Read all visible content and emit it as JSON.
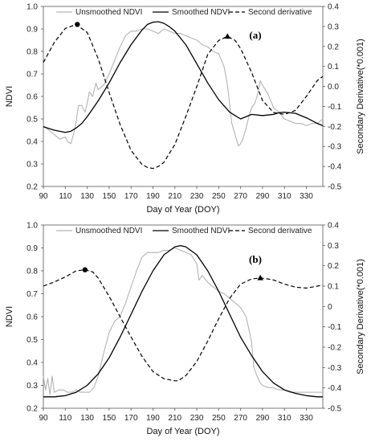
{
  "chart_data": [
    {
      "type": "line",
      "panel_label": "(a)",
      "xlabel": "Day of Year (DOY)",
      "ylabel": "NDVI",
      "y2label": "Secondary Derivative(*0.001)",
      "xlim": [
        90,
        345
      ],
      "ylim": [
        0.2,
        1.0
      ],
      "y2lim": [
        -0.5,
        0.4
      ],
      "xticks": [
        "90",
        "110",
        "130",
        "150",
        "170",
        "190",
        "210",
        "230",
        "250",
        "270",
        "290",
        "310",
        "330"
      ],
      "yticks": [
        "0.2",
        "0.3",
        "0.4",
        "0.5",
        "0.6",
        "0.7",
        "0.8",
        "0.9",
        "1.0"
      ],
      "y2ticks": [
        "-0.5",
        "-0.4",
        "-0.3",
        "-0.2",
        "-0.1",
        "0.0",
        "0.1",
        "0.2",
        "0.3",
        "0.4"
      ],
      "legend": [
        "Unsmoothed NDVI",
        "Smoothed NDVI",
        "Second derivative"
      ],
      "legend_position": "top",
      "series": [
        {
          "name": "Unsmoothed NDVI",
          "axis": "left",
          "style": "solid",
          "color": "#b3b3b3",
          "x": [
            90,
            95,
            100,
            105,
            110,
            112,
            115,
            118,
            120,
            122,
            125,
            128,
            130,
            132,
            135,
            138,
            140,
            145,
            150,
            155,
            160,
            165,
            170,
            175,
            180,
            185,
            190,
            195,
            200,
            205,
            210,
            215,
            220,
            225,
            230,
            235,
            240,
            245,
            250,
            255,
            258,
            262,
            265,
            268,
            270,
            272,
            275,
            278,
            280,
            283,
            285,
            288,
            290,
            295,
            300,
            305,
            310,
            315,
            320,
            325,
            330,
            335,
            340,
            345
          ],
          "y": [
            0.47,
            0.45,
            0.43,
            0.41,
            0.42,
            0.4,
            0.39,
            0.44,
            0.49,
            0.56,
            0.56,
            0.53,
            0.57,
            0.62,
            0.6,
            0.66,
            0.63,
            0.65,
            0.7,
            0.76,
            0.82,
            0.87,
            0.89,
            0.89,
            0.9,
            0.9,
            0.89,
            0.88,
            0.9,
            0.89,
            0.88,
            0.88,
            0.87,
            0.86,
            0.85,
            0.83,
            0.82,
            0.8,
            0.79,
            0.73,
            0.65,
            0.48,
            0.43,
            0.38,
            0.39,
            0.41,
            0.46,
            0.52,
            0.55,
            0.57,
            0.6,
            0.67,
            0.65,
            0.61,
            0.55,
            0.53,
            0.5,
            0.49,
            0.48,
            0.48,
            0.47,
            0.48,
            0.48,
            0.5
          ]
        },
        {
          "name": "Smoothed NDVI",
          "axis": "left",
          "style": "solid",
          "color": "#000000",
          "x": [
            90,
            100,
            110,
            115,
            120,
            125,
            130,
            140,
            150,
            160,
            170,
            180,
            185,
            190,
            195,
            200,
            205,
            210,
            220,
            230,
            240,
            250,
            260,
            270,
            280,
            290,
            300,
            305,
            310,
            320,
            330,
            340,
            345
          ],
          "y": [
            0.465,
            0.45,
            0.44,
            0.445,
            0.46,
            0.48,
            0.51,
            0.58,
            0.66,
            0.75,
            0.83,
            0.895,
            0.92,
            0.93,
            0.932,
            0.925,
            0.91,
            0.89,
            0.83,
            0.745,
            0.66,
            0.585,
            0.53,
            0.5,
            0.52,
            0.515,
            0.52,
            0.528,
            0.53,
            0.525,
            0.505,
            0.48,
            0.47
          ]
        },
        {
          "name": "Second derivative",
          "axis": "right",
          "style": "dashed",
          "color": "#000000",
          "x": [
            90,
            100,
            110,
            120,
            130,
            140,
            150,
            160,
            170,
            180,
            185,
            190,
            195,
            200,
            210,
            220,
            230,
            240,
            250,
            258,
            265,
            270,
            280,
            290,
            300,
            310,
            320,
            330,
            340,
            345
          ],
          "y": [
            0.12,
            0.22,
            0.29,
            0.31,
            0.27,
            0.14,
            -0.03,
            -0.19,
            -0.32,
            -0.39,
            -0.405,
            -0.41,
            -0.4,
            -0.38,
            -0.29,
            -0.15,
            0.0,
            0.16,
            0.23,
            0.25,
            0.23,
            0.19,
            0.07,
            -0.07,
            -0.13,
            -0.14,
            -0.12,
            -0.05,
            0.03,
            0.05
          ]
        }
      ],
      "markers": [
        {
          "x": 121,
          "y": 0.31,
          "axis": "right",
          "shape": "circle"
        },
        {
          "x": 258,
          "y": 0.25,
          "axis": "right",
          "shape": "triangle"
        }
      ]
    },
    {
      "type": "line",
      "panel_label": "(b)",
      "xlabel": "Day of Year (DOY)",
      "ylabel": "NDVI",
      "y2label": "Secondary Derivative(*0.001)",
      "xlim": [
        90,
        345
      ],
      "ylim": [
        0.2,
        1.0
      ],
      "y2lim": [
        -0.5,
        0.4
      ],
      "xticks": [
        "90",
        "110",
        "130",
        "150",
        "170",
        "190",
        "210",
        "230",
        "250",
        "270",
        "290",
        "310",
        "330"
      ],
      "yticks": [
        "0.2",
        "0.3",
        "0.4",
        "0.5",
        "0.6",
        "0.7",
        "0.8",
        "0.9",
        "1.0"
      ],
      "y2ticks": [
        "-0.5",
        "-0.4",
        "-0.3",
        "-0.2",
        "-0.1",
        "0",
        "0.1",
        "0.2",
        "0.3",
        "0.4"
      ],
      "legend": [
        "Unsmoothed NDVI",
        "Smoothed NDVI",
        "Second derivative"
      ],
      "legend_position": "top",
      "series": [
        {
          "name": "Unsmoothed NDVI",
          "axis": "left",
          "style": "solid",
          "color": "#b3b3b3",
          "x": [
            90,
            92,
            94,
            96,
            98,
            100,
            104,
            108,
            112,
            116,
            120,
            124,
            128,
            132,
            136,
            140,
            145,
            150,
            155,
            160,
            165,
            170,
            175,
            180,
            185,
            190,
            195,
            200,
            205,
            210,
            215,
            220,
            225,
            230,
            232,
            235,
            240,
            245,
            250,
            255,
            260,
            265,
            270,
            275,
            280,
            282,
            285,
            288,
            290,
            295,
            300,
            305,
            310,
            315,
            320,
            325,
            330,
            335,
            340,
            345
          ],
          "y": [
            0.34,
            0.28,
            0.33,
            0.26,
            0.34,
            0.27,
            0.28,
            0.28,
            0.27,
            0.27,
            0.28,
            0.27,
            0.27,
            0.27,
            0.29,
            0.34,
            0.44,
            0.53,
            0.58,
            0.6,
            0.66,
            0.73,
            0.8,
            0.86,
            0.88,
            0.88,
            0.88,
            0.89,
            0.89,
            0.9,
            0.89,
            0.88,
            0.87,
            0.83,
            0.76,
            0.78,
            0.75,
            0.73,
            0.71,
            0.7,
            0.68,
            0.66,
            0.64,
            0.6,
            0.49,
            0.38,
            0.34,
            0.31,
            0.3,
            0.29,
            0.29,
            0.28,
            0.28,
            0.27,
            0.27,
            0.27,
            0.27,
            0.27,
            0.27,
            0.27
          ]
        },
        {
          "name": "Smoothed NDVI",
          "axis": "left",
          "style": "solid",
          "color": "#000000",
          "x": [
            90,
            100,
            110,
            120,
            130,
            140,
            150,
            160,
            170,
            180,
            190,
            200,
            210,
            215,
            220,
            230,
            240,
            250,
            260,
            270,
            280,
            290,
            300,
            310,
            320,
            330,
            340,
            345
          ],
          "y": [
            0.25,
            0.25,
            0.255,
            0.27,
            0.3,
            0.35,
            0.42,
            0.51,
            0.61,
            0.71,
            0.8,
            0.87,
            0.905,
            0.91,
            0.905,
            0.87,
            0.8,
            0.71,
            0.61,
            0.51,
            0.43,
            0.36,
            0.31,
            0.28,
            0.265,
            0.255,
            0.25,
            0.25
          ]
        },
        {
          "name": "Second derivative",
          "axis": "right",
          "style": "dashed",
          "color": "#000000",
          "x": [
            90,
            100,
            110,
            120,
            128,
            135,
            140,
            150,
            160,
            170,
            180,
            190,
            200,
            210,
            213,
            220,
            230,
            240,
            250,
            260,
            270,
            280,
            288,
            295,
            300,
            310,
            320,
            330,
            340,
            345
          ],
          "y": [
            0.1,
            0.12,
            0.145,
            0.175,
            0.18,
            0.17,
            0.14,
            0.05,
            -0.05,
            -0.15,
            -0.245,
            -0.32,
            -0.355,
            -0.365,
            -0.365,
            -0.34,
            -0.27,
            -0.17,
            -0.06,
            0.04,
            0.11,
            0.135,
            0.14,
            0.135,
            0.13,
            0.11,
            0.095,
            0.09,
            0.1,
            0.105
          ]
        }
      ],
      "markers": [
        {
          "x": 128,
          "y": 0.18,
          "axis": "right",
          "shape": "circle"
        },
        {
          "x": 288,
          "y": 0.14,
          "axis": "right",
          "shape": "triangle"
        }
      ]
    }
  ]
}
